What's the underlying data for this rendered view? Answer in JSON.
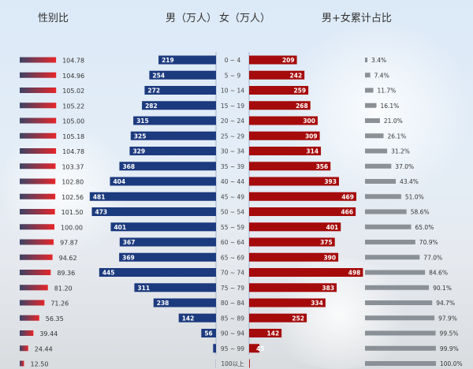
{
  "titles": {
    "sex_ratio": "性别比",
    "male": "男（万人）",
    "female": "女（万人）",
    "cumulative": "男+女累计占比"
  },
  "colors": {
    "male": "#1c3a7e",
    "female": "#a50b0b",
    "sex_ratio_start": "#3d4366",
    "sex_ratio_end": "#e5262a",
    "cumulative": "#8a9096"
  },
  "chart_data": {
    "type": "bar",
    "categories": [
      "0 ~ 4",
      "5 ~ 9",
      "10 ~ 14",
      "15 ~ 19",
      "20 ~ 24",
      "25 ~ 29",
      "30 ~ 34",
      "35 ~ 39",
      "40 ~ 44",
      "45 ~ 49",
      "50 ~ 54",
      "55 ~ 59",
      "60 ~ 64",
      "65 ~ 69",
      "70 ~ 74",
      "75 ~ 79",
      "80 ~ 84",
      "85 ~ 89",
      "90 ~ 94",
      "95 ~ 99",
      "100以上"
    ],
    "series": [
      {
        "name": "性别比",
        "values": [
          104.78,
          104.96,
          105.02,
          105.22,
          105.0,
          105.18,
          104.78,
          103.37,
          102.8,
          102.56,
          101.5,
          100.0,
          97.87,
          94.62,
          89.36,
          81.2,
          71.26,
          56.35,
          39.44,
          24.44,
          12.5
        ],
        "labels": [
          "104.78",
          "104.96",
          "105.02",
          "105.22",
          "105.00",
          "105.18",
          "104.78",
          "103.37",
          "102.80",
          "102.56",
          "101.50",
          "100.00",
          "97.87",
          "94.62",
          "89.36",
          "81.20",
          "71.26",
          "56.35",
          "39.44",
          "24.44",
          "12.50"
        ]
      },
      {
        "name": "男（万人）",
        "values": [
          219,
          254,
          272,
          282,
          315,
          325,
          329,
          368,
          404,
          481,
          473,
          401,
          367,
          369,
          445,
          311,
          238,
          142,
          56,
          11,
          0.5
        ],
        "labels": [
          "219",
          "254",
          "272",
          "282",
          "315",
          "325",
          "329",
          "368",
          "404",
          "481",
          "473",
          "401",
          "367",
          "369",
          "445",
          "311",
          "238",
          "142",
          "56",
          "",
          ""
        ]
      },
      {
        "name": "女（万人）",
        "values": [
          209,
          242,
          259,
          268,
          300,
          309,
          314,
          356,
          393,
          469,
          466,
          401,
          375,
          390,
          498,
          383,
          334,
          252,
          142,
          45,
          3
        ],
        "labels": [
          "209",
          "242",
          "259",
          "268",
          "300",
          "309",
          "314",
          "356",
          "393",
          "469",
          "466",
          "401",
          "375",
          "390",
          "498",
          "383",
          "334",
          "252",
          "142",
          "45",
          ""
        ]
      },
      {
        "name": "男+女累计占比",
        "values": [
          3.4,
          7.4,
          11.7,
          16.1,
          21.0,
          26.1,
          31.2,
          37.0,
          43.4,
          51.0,
          58.6,
          65.0,
          70.9,
          77.0,
          84.6,
          90.1,
          94.7,
          97.9,
          99.5,
          99.9,
          100.0
        ],
        "labels": [
          "3.4%",
          "7.4%",
          "11.7%",
          "16.1%",
          "21.0%",
          "26.1%",
          "31.2%",
          "37.0%",
          "43.4%",
          "51.0%",
          "58.6%",
          "65.0%",
          "70.9%",
          "77.0%",
          "84.6%",
          "90.1%",
          "94.7%",
          "97.9%",
          "99.5%",
          "99.9%",
          "100.0%"
        ]
      }
    ],
    "grid": false,
    "legend": "none"
  }
}
